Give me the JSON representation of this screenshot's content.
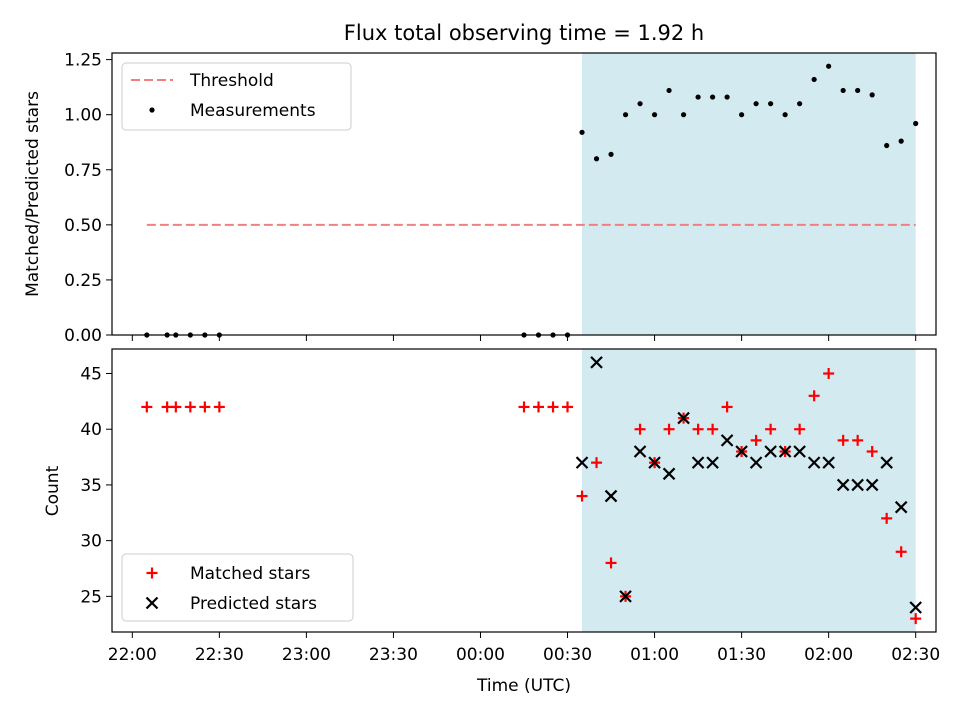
{
  "colors": {
    "shade": "#d3eaf1",
    "threshold": "#f08080",
    "matched": "#ff0000",
    "predicted": "#000000",
    "measurement": "#000000"
  },
  "chart_data": [
    {
      "type": "scatter",
      "title": "Flux total observing time = 1.92 h",
      "ylabel": "Matched/Predicted stars",
      "xlabel": "",
      "xlim": [
        "21:53",
        "02:37"
      ],
      "ylim": [
        0,
        1.28
      ],
      "yticks": [
        0.0,
        0.25,
        0.5,
        0.75,
        1.0,
        1.25
      ],
      "ytick_labels": [
        "0.00",
        "0.25",
        "0.50",
        "0.75",
        "1.00",
        "1.25"
      ],
      "x_ticks": [
        "22:00",
        "22:30",
        "23:00",
        "23:30",
        "00:00",
        "00:30",
        "01:00",
        "01:30",
        "02:00",
        "02:30"
      ],
      "legend_position": "top-left",
      "shaded_region": [
        "00:35",
        "02:30"
      ],
      "threshold": {
        "name": "Threshold",
        "value": 0.5,
        "x_range": [
          "22:05",
          "02:30"
        ]
      },
      "series": [
        {
          "name": "Measurements",
          "marker": "dot",
          "x": [
            "22:05",
            "22:12",
            "22:15",
            "22:20",
            "22:25",
            "22:30",
            "00:15",
            "00:20",
            "00:25",
            "00:30",
            "00:35",
            "00:40",
            "00:45",
            "00:50",
            "00:55",
            "01:00",
            "01:05",
            "01:10",
            "01:15",
            "01:20",
            "01:25",
            "01:30",
            "01:35",
            "01:40",
            "01:45",
            "01:50",
            "01:55",
            "02:00",
            "02:05",
            "02:10",
            "02:15",
            "02:20",
            "02:25",
            "02:30"
          ],
          "y": [
            0,
            0,
            0,
            0,
            0,
            0,
            0,
            0,
            0,
            0,
            0.92,
            0.8,
            0.82,
            1.0,
            1.05,
            1.0,
            1.11,
            1.0,
            1.08,
            1.08,
            1.08,
            1.0,
            1.05,
            1.05,
            1.0,
            1.05,
            1.16,
            1.22,
            1.11,
            1.11,
            1.09,
            0.86,
            0.88,
            0.96
          ]
        }
      ]
    },
    {
      "type": "scatter",
      "title": "",
      "ylabel": "Count",
      "xlabel": "Time (UTC)",
      "xlim": [
        "21:53",
        "02:37"
      ],
      "ylim": [
        21.8,
        47.2
      ],
      "yticks": [
        25,
        30,
        35,
        40,
        45
      ],
      "ytick_labels": [
        "25",
        "30",
        "35",
        "40",
        "45"
      ],
      "x_ticks": [
        "22:00",
        "22:30",
        "23:00",
        "23:30",
        "00:00",
        "00:30",
        "01:00",
        "01:30",
        "02:00",
        "02:30"
      ],
      "legend_position": "bottom-left",
      "shaded_region": [
        "00:35",
        "02:30"
      ],
      "series": [
        {
          "name": "Matched stars",
          "marker": "plus",
          "x": [
            "22:05",
            "22:12",
            "22:15",
            "22:20",
            "22:25",
            "22:30",
            "00:15",
            "00:20",
            "00:25",
            "00:30",
            "00:35",
            "00:40",
            "00:45",
            "00:50",
            "00:55",
            "01:00",
            "01:05",
            "01:10",
            "01:15",
            "01:20",
            "01:25",
            "01:30",
            "01:35",
            "01:40",
            "01:45",
            "01:50",
            "01:55",
            "02:00",
            "02:05",
            "02:10",
            "02:15",
            "02:20",
            "02:25",
            "02:30"
          ],
          "y": [
            42,
            42,
            42,
            42,
            42,
            42,
            42,
            42,
            42,
            42,
            34,
            37,
            28,
            25,
            40,
            37,
            40,
            41,
            40,
            40,
            42,
            38,
            39,
            40,
            38,
            40,
            43,
            45,
            39,
            39,
            38,
            32,
            29,
            23
          ]
        },
        {
          "name": "Predicted stars",
          "marker": "x",
          "x": [
            "00:35",
            "00:40",
            "00:45",
            "00:50",
            "00:55",
            "01:00",
            "01:05",
            "01:10",
            "01:15",
            "01:20",
            "01:25",
            "01:30",
            "01:35",
            "01:40",
            "01:45",
            "01:50",
            "01:55",
            "02:00",
            "02:05",
            "02:10",
            "02:15",
            "02:20",
            "02:25",
            "02:30"
          ],
          "y": [
            37,
            46,
            34,
            25,
            38,
            37,
            36,
            41,
            37,
            37,
            39,
            38,
            37,
            38,
            38,
            38,
            37,
            37,
            35,
            35,
            35,
            37,
            33,
            24
          ]
        }
      ]
    }
  ]
}
